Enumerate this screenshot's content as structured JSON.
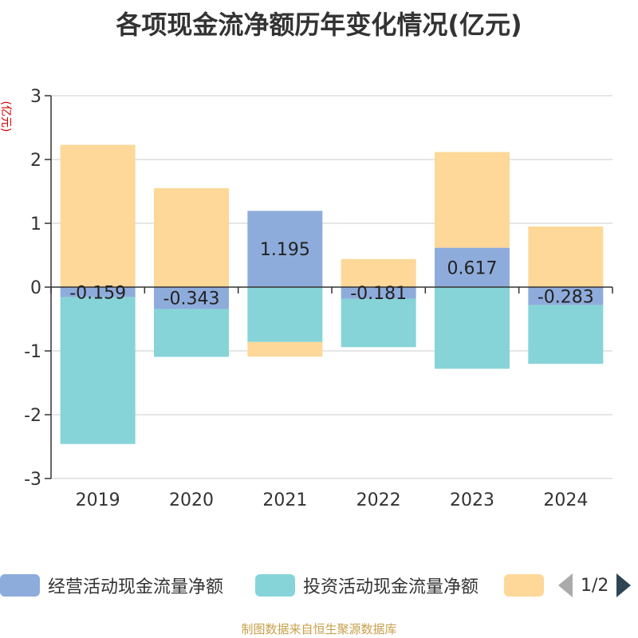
{
  "title": "各项现金流净额历年变化情况(亿元)",
  "y_unit": "(亿元)",
  "footer": "制图数据来自恒生聚源数据库",
  "pager": {
    "text": "1/2"
  },
  "legend": [
    {
      "label": "经营活动现金流量净额",
      "color": "#8eacdb"
    },
    {
      "label": "投资活动现金流量净额",
      "color": "#86d4d8"
    },
    {
      "label": "",
      "color": "#fdd899"
    }
  ],
  "chart_data": {
    "type": "bar",
    "stacked": true,
    "title": "各项现金流净额历年变化情况(亿元)",
    "ylabel": "(亿元)",
    "ylim": [
      -3,
      3
    ],
    "yticks": [
      3,
      2,
      1,
      0,
      -1,
      -2,
      -3
    ],
    "categories": [
      "2019",
      "2020",
      "2021",
      "2022",
      "2023",
      "2024"
    ],
    "series": [
      {
        "name": "经营活动现金流量净额",
        "color": "#8eacdb",
        "values": [
          -0.159,
          -0.343,
          1.195,
          -0.181,
          0.617,
          -0.283
        ],
        "labels": [
          "-0.159",
          "-0.343",
          "1.195",
          "-0.181",
          "0.617",
          "-0.283"
        ]
      },
      {
        "name": "投资活动现金流量净额",
        "color": "#86d4d8",
        "values": [
          -2.3,
          -0.75,
          -0.86,
          -0.76,
          -1.28,
          -0.92
        ]
      },
      {
        "name": "",
        "color": "#fdd899",
        "values": [
          2.23,
          1.55,
          -0.23,
          0.44,
          1.5,
          0.95
        ]
      }
    ]
  }
}
